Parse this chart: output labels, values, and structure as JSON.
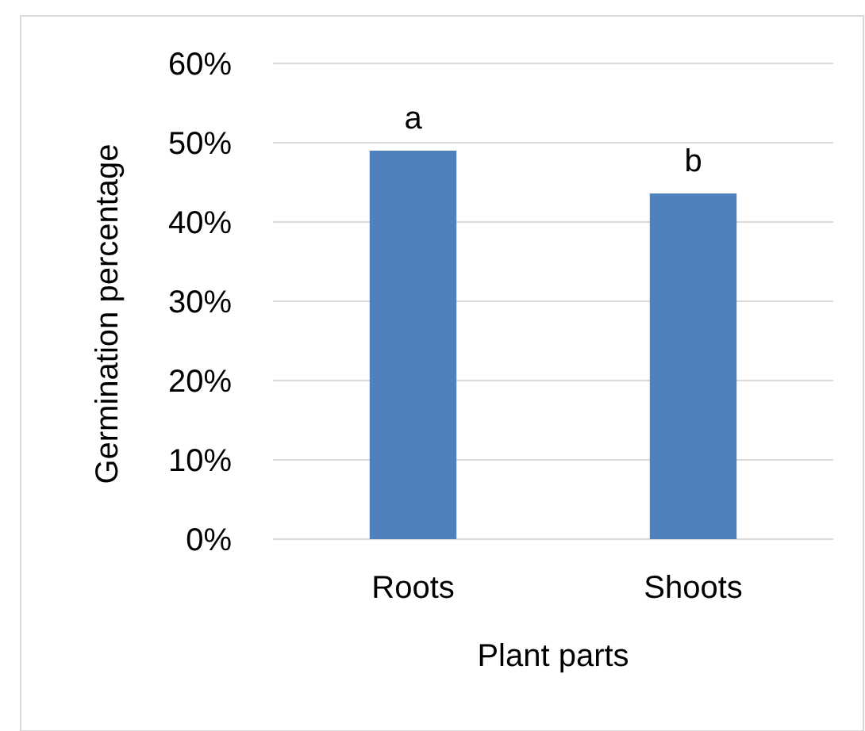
{
  "chart_data": {
    "type": "bar",
    "categories": [
      "Roots",
      "Shoots"
    ],
    "values": [
      49,
      43.6
    ],
    "color": "#4f81bd",
    "xlabel": "Plant parts",
    "ylabel": "Germination percentage",
    "ylim": [
      0,
      60
    ],
    "yticks": [
      {
        "value": 0,
        "label": "0%"
      },
      {
        "value": 10,
        "label": "10%"
      },
      {
        "value": 20,
        "label": "20%"
      },
      {
        "value": 30,
        "label": "30%"
      },
      {
        "value": 40,
        "label": "40%"
      },
      {
        "value": 50,
        "label": "50%"
      },
      {
        "value": 60,
        "label": "60%"
      }
    ],
    "grid": "y",
    "annotations": [
      {
        "text": "a",
        "x": "Roots",
        "y": 49
      },
      {
        "text": "b",
        "x": "Shoots",
        "y": 43.6
      }
    ]
  }
}
